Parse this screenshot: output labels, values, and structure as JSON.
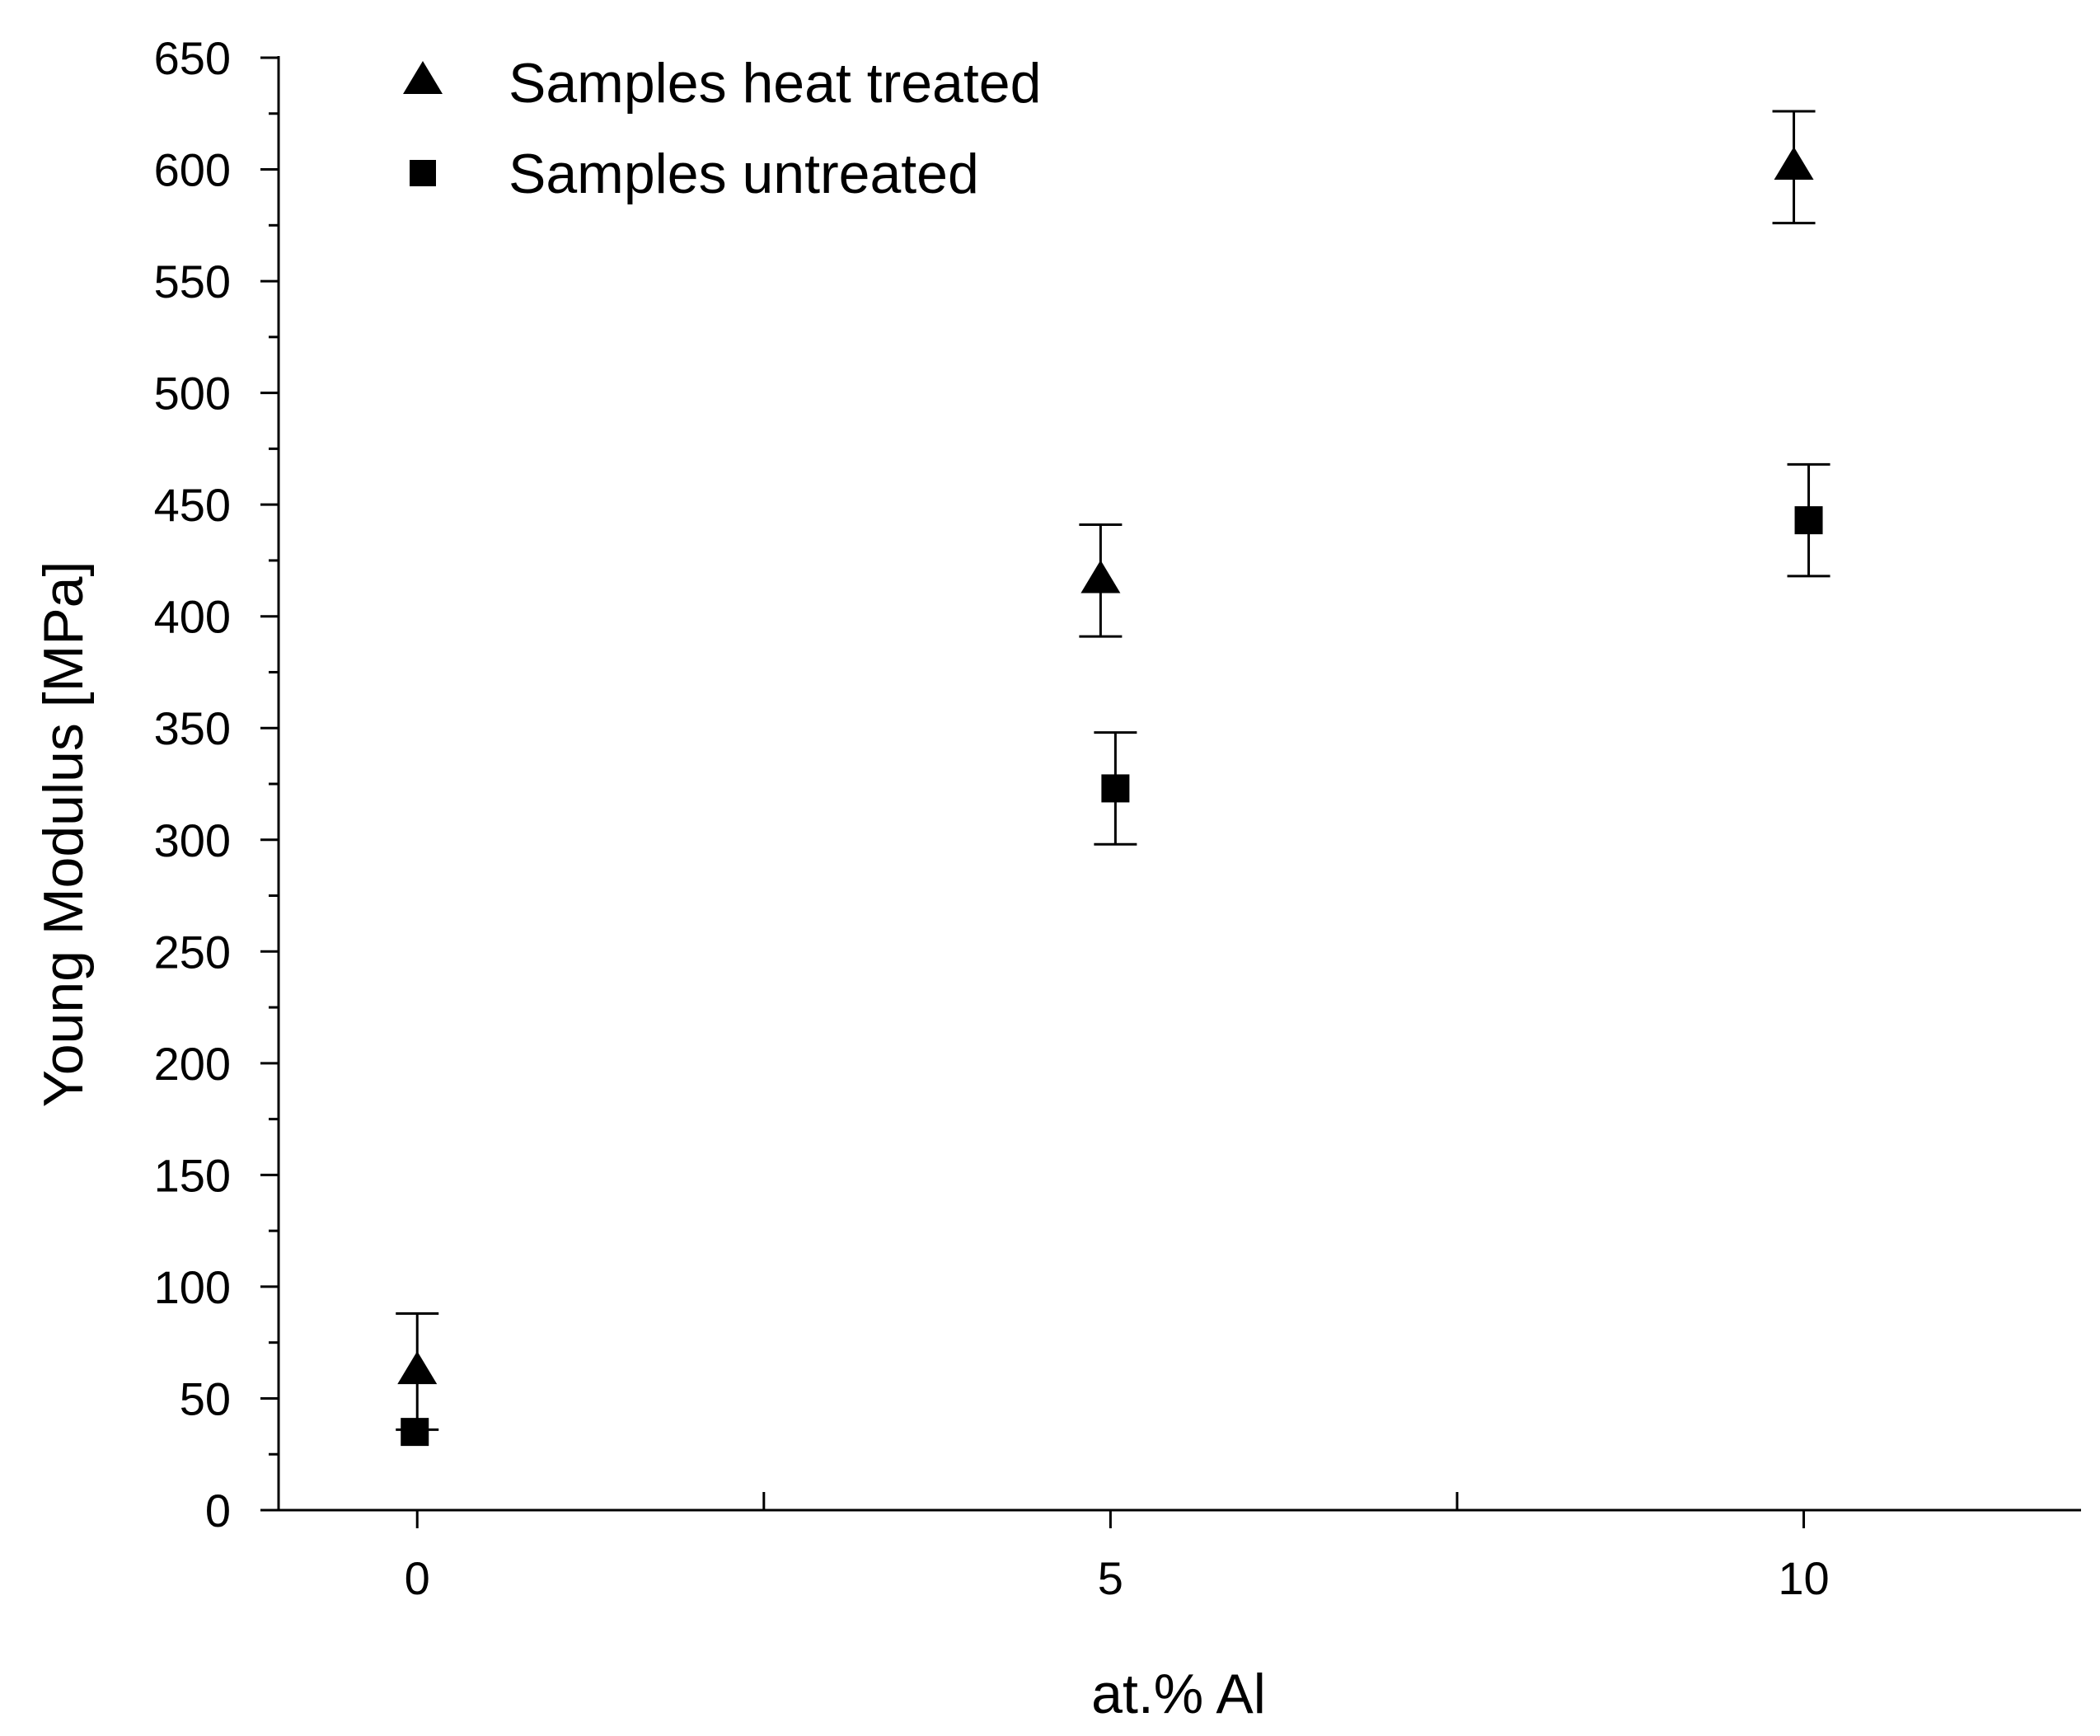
{
  "chart_data": {
    "type": "scatter",
    "title": "",
    "xlabel": "at.% Al",
    "ylabel": "Young Modulus [MPa]",
    "xlim": [
      -1,
      12
    ],
    "ylim": [
      0,
      650
    ],
    "x_ticks": [
      0,
      5,
      10
    ],
    "x_minor_ticks": [
      2.5,
      7.5
    ],
    "y_ticks": [
      0,
      50,
      100,
      150,
      200,
      250,
      300,
      350,
      400,
      450,
      500,
      550,
      600,
      650
    ],
    "grid": false,
    "legend_position": "top-left",
    "series": [
      {
        "name": "Samples heat treated",
        "marker": "triangle",
        "color": "#000000",
        "points": [
          {
            "x": 0,
            "y": 62,
            "err": 26
          },
          {
            "x": 5,
            "y": 416,
            "err": 25
          },
          {
            "x": 10,
            "y": 601,
            "err": 25
          }
        ]
      },
      {
        "name": "Samples untreated",
        "marker": "square",
        "color": "#000000",
        "points": [
          {
            "x": 0,
            "y": 35,
            "err": 26
          },
          {
            "x": 5,
            "y": 323,
            "err": 25
          },
          {
            "x": 10,
            "y": 443,
            "err": 25
          }
        ]
      }
    ]
  }
}
